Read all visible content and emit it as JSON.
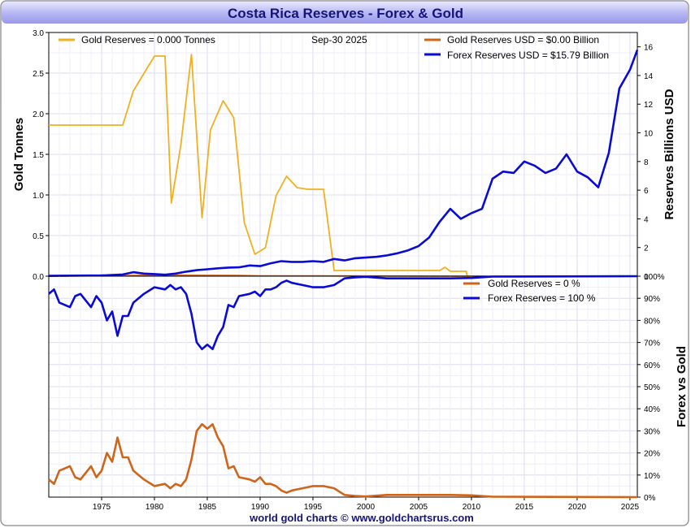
{
  "chart_data": [
    {
      "type": "line",
      "title": "Costa Rica Reserves - Forex & Gold",
      "date_label": "Sep-30  2025",
      "ylabel_left": "Gold Tonnes",
      "ylabel_right": "Reserves Billions USD",
      "ylim_left": [
        0,
        3.0
      ],
      "ylim_right": [
        0,
        17
      ],
      "left_ticks": [
        "0.0",
        "0.5",
        "1.0",
        "1.5",
        "2.0",
        "2.5",
        "3.0"
      ],
      "right_ticks": [
        "0",
        "2",
        "4",
        "6",
        "8",
        "10",
        "12",
        "14",
        "16"
      ],
      "legend": {
        "gold_tonnes": "Gold Reserves  = 0.000 Tonnes",
        "gold_usd": "Gold Reserves USD    = $0.00 Billion",
        "forex_usd": "Forex Reserves USD  = $15.79 Billion"
      },
      "series": [
        {
          "name": "Gold Reserves (Tonnes)",
          "axis": "left",
          "color": "#f0b020",
          "points": [
            [
              1970,
              1.86
            ],
            [
              1977,
              1.86
            ],
            [
              1978,
              2.28
            ],
            [
              1980,
              2.71
            ],
            [
              1981,
              2.71
            ],
            [
              1981.6,
              0.9
            ],
            [
              1982.5,
              1.62
            ],
            [
              1983.5,
              2.73
            ],
            [
              1984.5,
              0.72
            ],
            [
              1985.3,
              1.8
            ],
            [
              1986.5,
              2.16
            ],
            [
              1987.5,
              1.95
            ],
            [
              1988.5,
              0.66
            ],
            [
              1989.5,
              0.27
            ],
            [
              1990.5,
              0.35
            ],
            [
              1991.5,
              0.99
            ],
            [
              1992.5,
              1.23
            ],
            [
              1993.5,
              1.09
            ],
            [
              1994.5,
              1.07
            ],
            [
              1996,
              1.07
            ],
            [
              1997,
              0.07
            ],
            [
              2000,
              0.07
            ],
            [
              2007,
              0.07
            ],
            [
              2007.5,
              0.11
            ],
            [
              2008,
              0.06
            ],
            [
              2009.5,
              0.06
            ],
            [
              2009.6,
              0.0
            ]
          ]
        },
        {
          "name": "Gold Reserves USD (Billion)",
          "axis": "right",
          "color": "#d06418",
          "points": [
            [
              1970,
              0.01
            ],
            [
              1978,
              0.05
            ],
            [
              1980,
              0.06
            ],
            [
              1988,
              0.05
            ],
            [
              1990,
              0.02
            ],
            [
              1996,
              0.02
            ],
            [
              2010,
              0.0
            ],
            [
              2025.7,
              0.0
            ]
          ]
        },
        {
          "name": "Forex Reserves USD (Billion)",
          "axis": "right",
          "color": "#0a0ad6",
          "points": [
            [
              1970,
              0.02
            ],
            [
              1975,
              0.05
            ],
            [
              1977,
              0.12
            ],
            [
              1978,
              0.28
            ],
            [
              1979,
              0.18
            ],
            [
              1980,
              0.15
            ],
            [
              1981,
              0.1
            ],
            [
              1982,
              0.18
            ],
            [
              1983,
              0.32
            ],
            [
              1984,
              0.42
            ],
            [
              1985,
              0.48
            ],
            [
              1986,
              0.55
            ],
            [
              1987,
              0.6
            ],
            [
              1988,
              0.62
            ],
            [
              1989,
              0.75
            ],
            [
              1990,
              0.7
            ],
            [
              1991,
              0.9
            ],
            [
              1992,
              1.05
            ],
            [
              1993,
              1.0
            ],
            [
              1994,
              1.0
            ],
            [
              1995,
              1.05
            ],
            [
              1996,
              1.0
            ],
            [
              1997,
              1.2
            ],
            [
              1998,
              1.1
            ],
            [
              1999,
              1.25
            ],
            [
              2000,
              1.3
            ],
            [
              2001,
              1.35
            ],
            [
              2002,
              1.45
            ],
            [
              2003,
              1.6
            ],
            [
              2004,
              1.8
            ],
            [
              2005,
              2.1
            ],
            [
              2006,
              2.7
            ],
            [
              2007,
              3.8
            ],
            [
              2008,
              4.7
            ],
            [
              2009,
              4.0
            ],
            [
              2010,
              4.4
            ],
            [
              2011,
              4.7
            ],
            [
              2012,
              6.8
            ],
            [
              2013,
              7.3
            ],
            [
              2014,
              7.2
            ],
            [
              2015,
              8.0
            ],
            [
              2016,
              7.7
            ],
            [
              2017,
              7.2
            ],
            [
              2018,
              7.5
            ],
            [
              2019,
              8.5
            ],
            [
              2020,
              7.3
            ],
            [
              2021,
              6.9
            ],
            [
              2022,
              6.2
            ],
            [
              2023,
              8.6
            ],
            [
              2024,
              13.1
            ],
            [
              2025,
              14.4
            ],
            [
              2025.7,
              15.79
            ]
          ]
        }
      ]
    },
    {
      "type": "line",
      "ylabel": "Forex vs Gold",
      "ylim": [
        0,
        100
      ],
      "y_ticks": [
        "0%",
        "10%",
        "20%",
        "30%",
        "40%",
        "50%",
        "60%",
        "70%",
        "80%",
        "90%",
        "100%"
      ],
      "x_ticks": [
        "1975",
        "1980",
        "1985",
        "1990",
        "1995",
        "2000",
        "2005",
        "2010",
        "2015",
        "2020",
        "2025"
      ],
      "xlim": [
        1970,
        2025.7
      ],
      "legend": {
        "gold_pct": "Gold Reserves     = 0 %",
        "forex_pct": "Forex Reserves  = 100 %"
      },
      "series": [
        {
          "name": "Gold Reserves %",
          "color": "#d06418",
          "points": [
            [
              1970,
              8
            ],
            [
              1970.5,
              6
            ],
            [
              1971,
              12
            ],
            [
              1972,
              14
            ],
            [
              1972.5,
              9
            ],
            [
              1973,
              8
            ],
            [
              1973.5,
              11
            ],
            [
              1974,
              14
            ],
            [
              1974.5,
              9
            ],
            [
              1975,
              12
            ],
            [
              1975.5,
              20
            ],
            [
              1976,
              16
            ],
            [
              1976.5,
              27
            ],
            [
              1977,
              18
            ],
            [
              1977.5,
              18
            ],
            [
              1978,
              12
            ],
            [
              1979,
              8
            ],
            [
              1980,
              5
            ],
            [
              1981,
              6
            ],
            [
              1981.5,
              4
            ],
            [
              1982,
              6
            ],
            [
              1982.5,
              5
            ],
            [
              1983,
              8
            ],
            [
              1983.5,
              17
            ],
            [
              1984,
              30
            ],
            [
              1984.5,
              33
            ],
            [
              1985,
              31
            ],
            [
              1985.5,
              33
            ],
            [
              1986,
              27
            ],
            [
              1986.5,
              23
            ],
            [
              1987,
              13
            ],
            [
              1987.5,
              14
            ],
            [
              1988,
              9
            ],
            [
              1989,
              8
            ],
            [
              1989.5,
              7
            ],
            [
              1990,
              9
            ],
            [
              1990.5,
              6
            ],
            [
              1991,
              6
            ],
            [
              1991.5,
              5
            ],
            [
              1992,
              3
            ],
            [
              1992.5,
              2
            ],
            [
              1993,
              3
            ],
            [
              1994,
              4
            ],
            [
              1995,
              5
            ],
            [
              1996,
              5
            ],
            [
              1997,
              4
            ],
            [
              1998,
              1
            ],
            [
              1999,
              0.5
            ],
            [
              2000,
              0.3
            ],
            [
              2002,
              1
            ],
            [
              2005,
              1
            ],
            [
              2008,
              1
            ],
            [
              2010,
              0.8
            ],
            [
              2012,
              0.2
            ],
            [
              2025.7,
              0
            ]
          ]
        },
        {
          "name": "Forex Reserves %",
          "color": "#0a0ad6",
          "points": [
            [
              1970,
              92
            ],
            [
              1970.5,
              94
            ],
            [
              1971,
              88
            ],
            [
              1972,
              86
            ],
            [
              1972.5,
              91
            ],
            [
              1973,
              92
            ],
            [
              1973.5,
              89
            ],
            [
              1974,
              86
            ],
            [
              1974.5,
              91
            ],
            [
              1975,
              88
            ],
            [
              1975.5,
              80
            ],
            [
              1976,
              84
            ],
            [
              1976.5,
              73
            ],
            [
              1977,
              82
            ],
            [
              1977.5,
              82
            ],
            [
              1978,
              88
            ],
            [
              1979,
              92
            ],
            [
              1980,
              95
            ],
            [
              1981,
              94
            ],
            [
              1981.5,
              96
            ],
            [
              1982,
              94
            ],
            [
              1982.5,
              95
            ],
            [
              1983,
              92
            ],
            [
              1983.5,
              83
            ],
            [
              1984,
              70
            ],
            [
              1984.5,
              67
            ],
            [
              1985,
              69
            ],
            [
              1985.5,
              67
            ],
            [
              1986,
              73
            ],
            [
              1986.5,
              77
            ],
            [
              1987,
              87
            ],
            [
              1987.5,
              86
            ],
            [
              1988,
              91
            ],
            [
              1989,
              92
            ],
            [
              1989.5,
              93
            ],
            [
              1990,
              91
            ],
            [
              1990.5,
              94
            ],
            [
              1991,
              94
            ],
            [
              1991.5,
              95
            ],
            [
              1992,
              97
            ],
            [
              1992.5,
              98
            ],
            [
              1993,
              97
            ],
            [
              1994,
              96
            ],
            [
              1995,
              95
            ],
            [
              1996,
              95
            ],
            [
              1997,
              96
            ],
            [
              1998,
              99
            ],
            [
              1999,
              99.5
            ],
            [
              2000,
              99.7
            ],
            [
              2002,
              99
            ],
            [
              2005,
              99
            ],
            [
              2008,
              99
            ],
            [
              2010,
              99.2
            ],
            [
              2012,
              99.8
            ],
            [
              2025.7,
              100
            ]
          ]
        }
      ]
    }
  ],
  "footer": "world gold charts © www.goldchartsrus.com"
}
